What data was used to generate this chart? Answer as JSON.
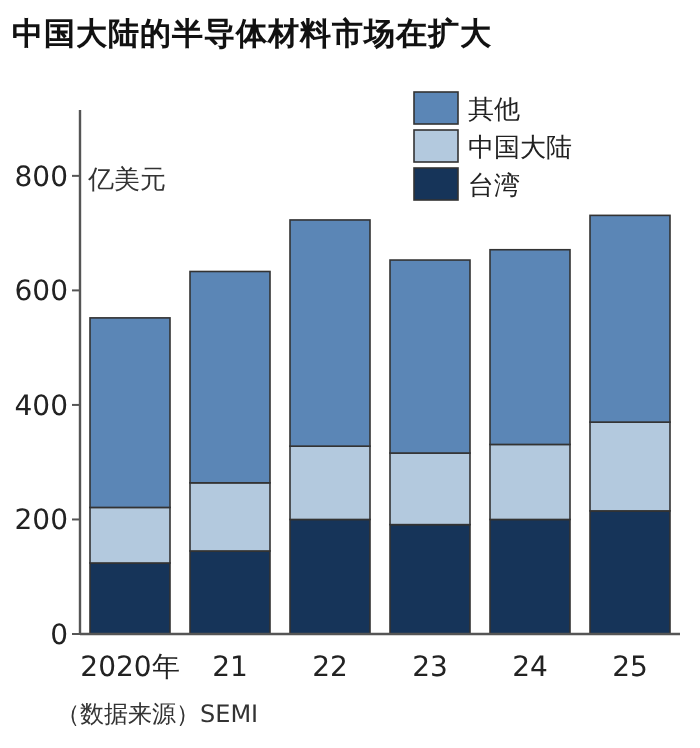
{
  "chart_data": {
    "type": "bar",
    "stacked": true,
    "title": "中国大陆的半导体材料市场在扩大",
    "ylabel": "亿美元",
    "categories": [
      "2020年",
      "21",
      "22",
      "23",
      "24",
      "25"
    ],
    "series": [
      {
        "name": "台湾",
        "color": "#163459",
        "values": [
          124,
          145,
          200,
          191,
          200,
          215
        ]
      },
      {
        "name": "中国大陆",
        "color": "#b3c9de",
        "values": [
          97,
          119,
          128,
          125,
          131,
          155
        ]
      },
      {
        "name": "其他",
        "color": "#5b86b6",
        "values": [
          331,
          369,
          395,
          337,
          340,
          361
        ]
      }
    ],
    "ylim": [
      0,
      915
    ],
    "yticks": [
      0,
      200,
      400,
      600,
      800
    ],
    "grid": false,
    "legend": "top right",
    "annotations": [
      "（数据来源）SEMI"
    ]
  }
}
